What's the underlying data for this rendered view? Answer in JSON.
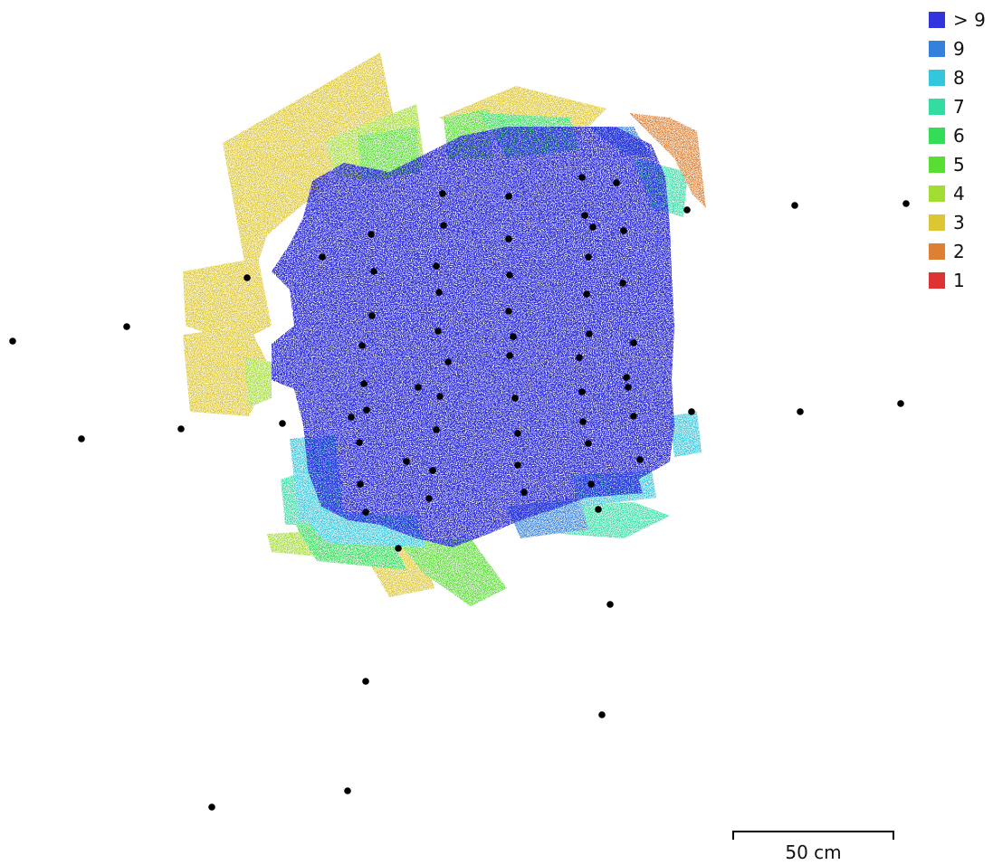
{
  "legend": {
    "items": [
      {
        "label": "> 9",
        "color": "#3333dd"
      },
      {
        "label": "9",
        "color": "#3380dd"
      },
      {
        "label": "8",
        "color": "#33c6dd"
      },
      {
        "label": "7",
        "color": "#33dda2"
      },
      {
        "label": "6",
        "color": "#33dd58"
      },
      {
        "label": "5",
        "color": "#58dd33"
      },
      {
        "label": "4",
        "color": "#a2dd33"
      },
      {
        "label": "3",
        "color": "#ddc633"
      },
      {
        "label": "2",
        "color": "#dd8033"
      },
      {
        "label": "1",
        "color": "#dd3333"
      }
    ]
  },
  "scale": {
    "label": "50 cm"
  }
}
